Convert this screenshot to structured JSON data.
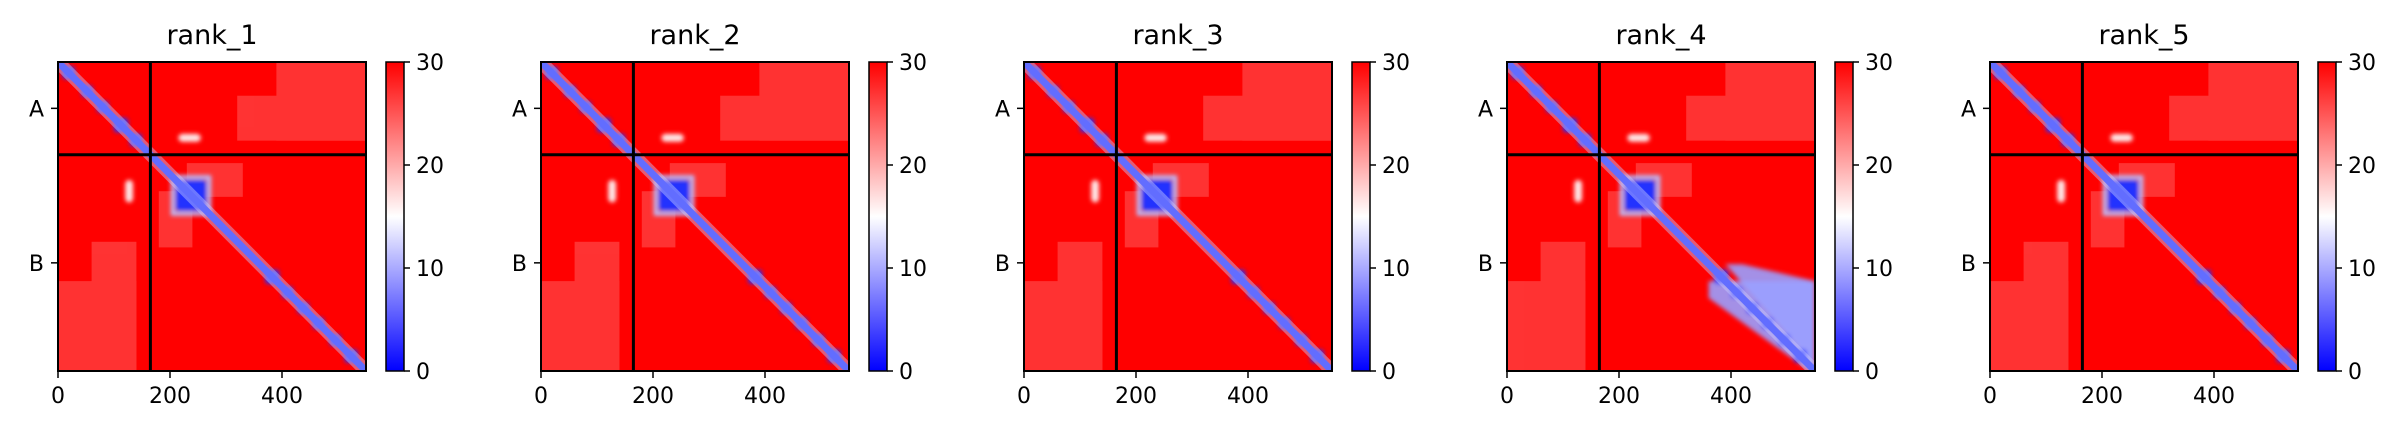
{
  "chart_data": [
    {
      "type": "heatmap",
      "title": "rank_1",
      "xticks": [
        0,
        200,
        400
      ],
      "yticks": [
        "A",
        "B"
      ],
      "colorbar": {
        "min": 0,
        "max": 30,
        "ticks": [
          0,
          10,
          20,
          30
        ]
      },
      "n_residues": 550,
      "chain_break": 165,
      "variant": 1
    },
    {
      "type": "heatmap",
      "title": "rank_2",
      "xticks": [
        0,
        200,
        400
      ],
      "yticks": [
        "A",
        "B"
      ],
      "colorbar": {
        "min": 0,
        "max": 30,
        "ticks": [
          0,
          10,
          20,
          30
        ]
      },
      "n_residues": 550,
      "chain_break": 165,
      "variant": 2
    },
    {
      "type": "heatmap",
      "title": "rank_3",
      "xticks": [
        0,
        200,
        400
      ],
      "yticks": [
        "A",
        "B"
      ],
      "colorbar": {
        "min": 0,
        "max": 30,
        "ticks": [
          0,
          10,
          20,
          30
        ]
      },
      "n_residues": 550,
      "chain_break": 165,
      "variant": 3
    },
    {
      "type": "heatmap",
      "title": "rank_4",
      "xticks": [
        0,
        200,
        400
      ],
      "yticks": [
        "A",
        "B"
      ],
      "colorbar": {
        "min": 0,
        "max": 30,
        "ticks": [
          0,
          10,
          20,
          30
        ]
      },
      "n_residues": 550,
      "chain_break": 165,
      "variant": 4
    },
    {
      "type": "heatmap",
      "title": "rank_5",
      "xticks": [
        0,
        200,
        400
      ],
      "yticks": [
        "A",
        "B"
      ],
      "colorbar": {
        "min": 0,
        "max": 30,
        "ticks": [
          0,
          10,
          20,
          30
        ]
      },
      "n_residues": 550,
      "chain_break": 165,
      "variant": 5
    }
  ],
  "colors": {
    "low": "#0000ff",
    "mid": "#ffffff",
    "high": "#ff0000",
    "divider": "#000000"
  }
}
